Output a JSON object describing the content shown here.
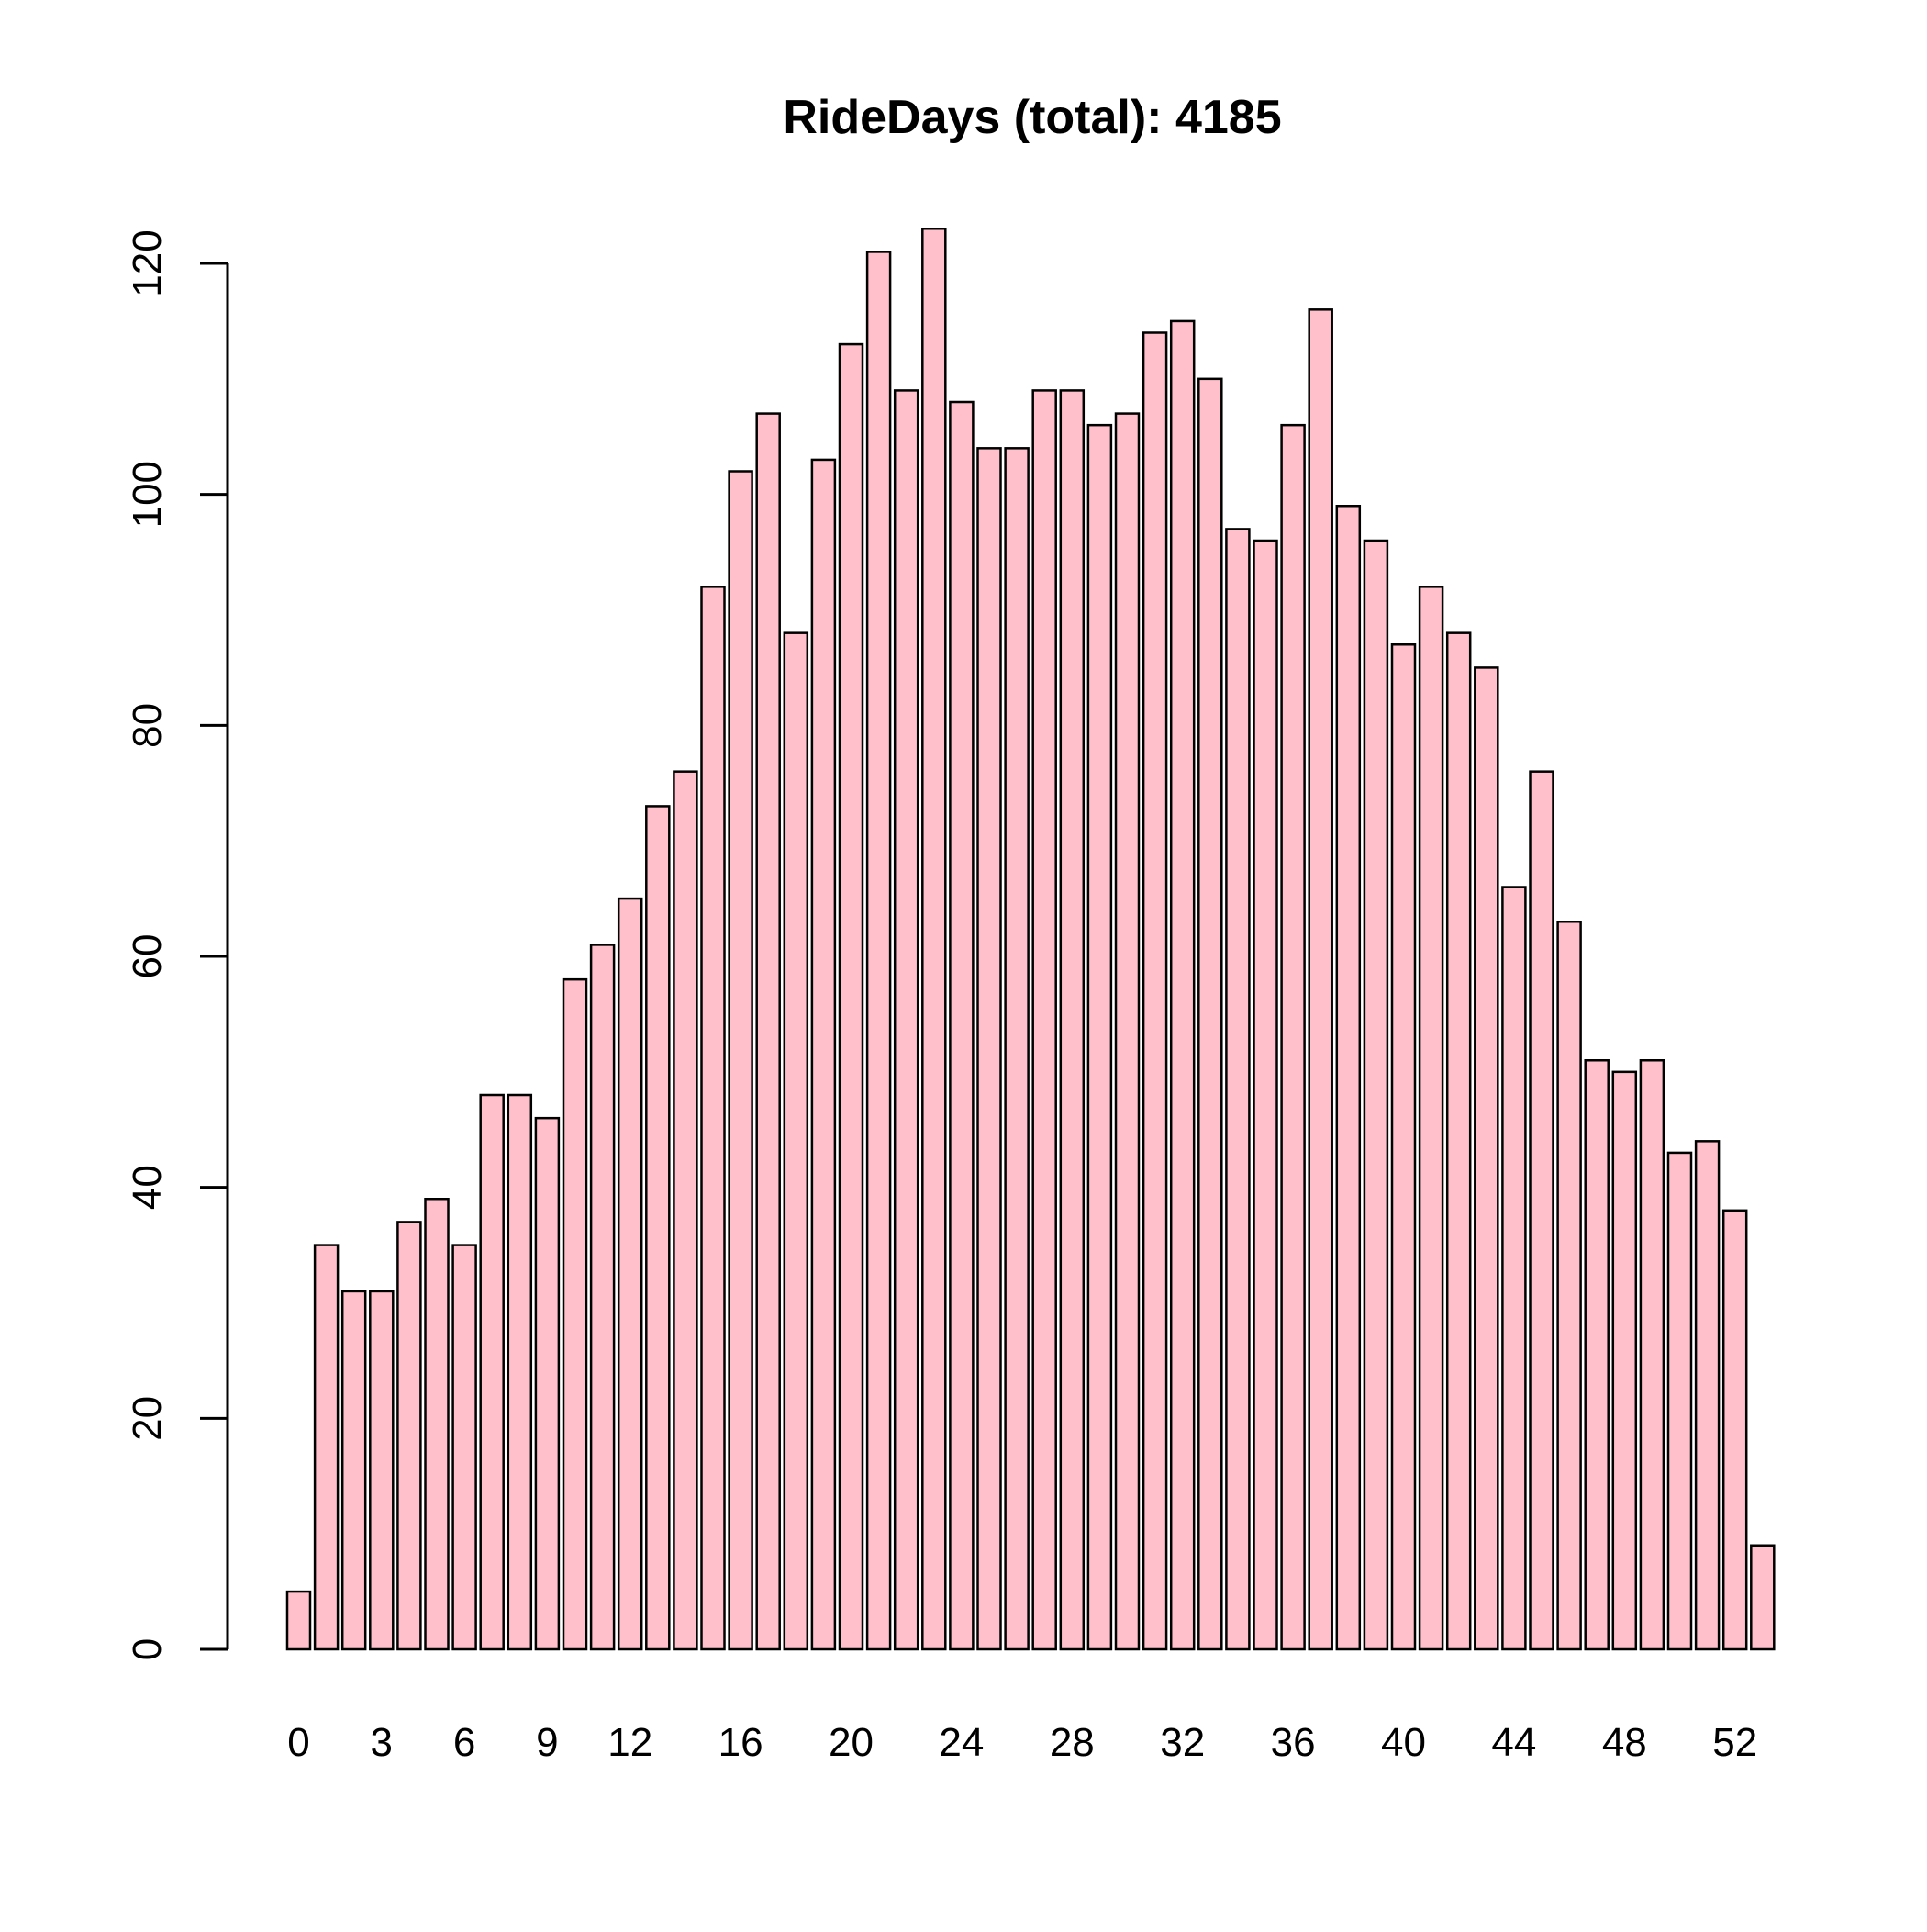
{
  "chart_data": {
    "type": "bar",
    "title": "RideDays (total): 4185",
    "xlabel": "",
    "ylabel": "",
    "categories": [
      "0",
      "1",
      "2",
      "3",
      "4",
      "5",
      "6",
      "7",
      "8",
      "9",
      "10",
      "11",
      "12",
      "13",
      "14",
      "15",
      "16",
      "17",
      "18",
      "19",
      "20",
      "21",
      "22",
      "23",
      "24",
      "25",
      "26",
      "27",
      "28",
      "29",
      "30",
      "31",
      "32",
      "33",
      "34",
      "35",
      "36",
      "37",
      "38",
      "39",
      "40",
      "41",
      "42",
      "43",
      "44",
      "45",
      "46",
      "47",
      "48",
      "49",
      "50",
      "51",
      "52",
      "53"
    ],
    "values": [
      5,
      35,
      31,
      31,
      37,
      39,
      35,
      48,
      48,
      46,
      58,
      61,
      65,
      73,
      76,
      92,
      102,
      107,
      88,
      103,
      113,
      121,
      109,
      123,
      108,
      104,
      104,
      109,
      109,
      106,
      107,
      114,
      115,
      110,
      97,
      96,
      106,
      116,
      99,
      96,
      87,
      92,
      88,
      85,
      66,
      76,
      63,
      51,
      50,
      51,
      43,
      44,
      38,
      9
    ],
    "x_tick_labels": [
      "0",
      "3",
      "6",
      "9",
      "12",
      "16",
      "20",
      "24",
      "28",
      "32",
      "36",
      "40",
      "44",
      "48",
      "52"
    ],
    "y_ticks": [
      0,
      20,
      40,
      60,
      80,
      100,
      120
    ],
    "ylim": [
      0,
      120
    ],
    "grid": false,
    "legend": "none",
    "bar_fill": "#ffc0cb",
    "bar_stroke": "#000000"
  }
}
